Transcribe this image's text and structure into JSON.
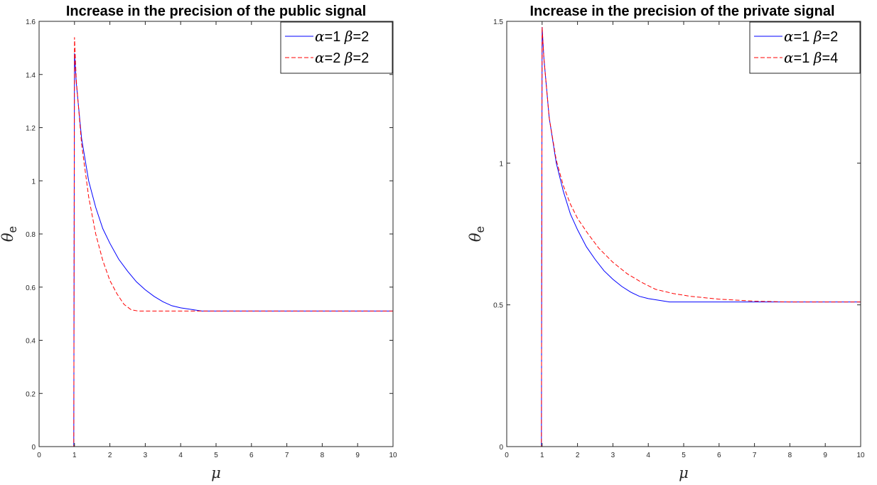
{
  "chart_data": [
    {
      "type": "line",
      "title": "Increase in the precision of the public signal",
      "xlabel": "μ",
      "ylabel_symbol": "θ",
      "ylabel_subscript": "e",
      "xlim": [
        0,
        10
      ],
      "ylim": [
        0,
        1.6
      ],
      "xticks": [
        "0",
        "1",
        "2",
        "3",
        "4",
        "5",
        "6",
        "7",
        "8",
        "9",
        "10"
      ],
      "yticks": [
        "0",
        "0.2",
        "0.4",
        "0.6",
        "0.8",
        "1",
        "1.2",
        "1.4",
        "1.6"
      ],
      "legend_position": "top-right",
      "grid": false,
      "series": [
        {
          "name": "α=1 β=2",
          "legend_parts": {
            "a_sym": "α",
            "a_val": "=1",
            "b_sym": "β",
            "b_val": "=2"
          },
          "color": "#0000ff",
          "dash": "solid",
          "points": [
            [
              0,
              0
            ],
            [
              0.98,
              0
            ],
            [
              1.0,
              1.48
            ],
            [
              1.05,
              1.37
            ],
            [
              1.2,
              1.16
            ],
            [
              1.4,
              1.0
            ],
            [
              1.6,
              0.9
            ],
            [
              1.8,
              0.82
            ],
            [
              2.0,
              0.765
            ],
            [
              2.25,
              0.705
            ],
            [
              2.5,
              0.66
            ],
            [
              2.75,
              0.62
            ],
            [
              3.0,
              0.59
            ],
            [
              3.25,
              0.565
            ],
            [
              3.5,
              0.545
            ],
            [
              3.75,
              0.53
            ],
            [
              4.0,
              0.522
            ],
            [
              4.3,
              0.516
            ],
            [
              4.6,
              0.51
            ],
            [
              10,
              0.51
            ]
          ]
        },
        {
          "name": "α=2 β=2",
          "legend_parts": {
            "a_sym": "α",
            "a_val": "=2",
            "b_sym": "β",
            "b_val": "=2"
          },
          "color": "#ff0000",
          "dash": "dashed",
          "points": [
            [
              0,
              0
            ],
            [
              0.98,
              0
            ],
            [
              1.0,
              1.54
            ],
            [
              1.05,
              1.38
            ],
            [
              1.2,
              1.14
            ],
            [
              1.4,
              0.94
            ],
            [
              1.6,
              0.8
            ],
            [
              1.8,
              0.7
            ],
            [
              2.0,
              0.625
            ],
            [
              2.2,
              0.575
            ],
            [
              2.4,
              0.535
            ],
            [
              2.6,
              0.515
            ],
            [
              2.8,
              0.51
            ],
            [
              10,
              0.51
            ]
          ]
        }
      ]
    },
    {
      "type": "line",
      "title": "Increase in the precision of the private signal",
      "xlabel": "μ",
      "ylabel_symbol": "θ",
      "ylabel_subscript": "e",
      "xlim": [
        0,
        10
      ],
      "ylim": [
        0,
        1.5
      ],
      "xticks": [
        "0",
        "1",
        "2",
        "3",
        "4",
        "5",
        "6",
        "7",
        "8",
        "9",
        "10"
      ],
      "yticks": [
        "0",
        "0.5",
        "1",
        "1.5"
      ],
      "legend_position": "top-right",
      "grid": false,
      "series": [
        {
          "name": "α=1 β=2",
          "legend_parts": {
            "a_sym": "α",
            "a_val": "=1",
            "b_sym": "β",
            "b_val": "=2"
          },
          "color": "#0000ff",
          "dash": "solid",
          "points": [
            [
              0,
              0
            ],
            [
              0.98,
              0
            ],
            [
              1.0,
              1.48
            ],
            [
              1.05,
              1.37
            ],
            [
              1.2,
              1.16
            ],
            [
              1.4,
              1.0
            ],
            [
              1.6,
              0.9
            ],
            [
              1.8,
              0.82
            ],
            [
              2.0,
              0.765
            ],
            [
              2.25,
              0.705
            ],
            [
              2.5,
              0.66
            ],
            [
              2.75,
              0.62
            ],
            [
              3.0,
              0.59
            ],
            [
              3.25,
              0.565
            ],
            [
              3.5,
              0.545
            ],
            [
              3.75,
              0.53
            ],
            [
              4.0,
              0.522
            ],
            [
              4.3,
              0.516
            ],
            [
              4.6,
              0.51
            ],
            [
              10,
              0.51
            ]
          ]
        },
        {
          "name": "α=1 β=4",
          "legend_parts": {
            "a_sym": "α",
            "a_val": "=1",
            "b_sym": "β",
            "b_val": "=4"
          },
          "color": "#ff0000",
          "dash": "dashed",
          "points": [
            [
              0,
              0
            ],
            [
              0.98,
              0
            ],
            [
              1.0,
              1.48
            ],
            [
              1.05,
              1.37
            ],
            [
              1.2,
              1.16
            ],
            [
              1.4,
              1.01
            ],
            [
              1.6,
              0.92
            ],
            [
              1.8,
              0.855
            ],
            [
              2.0,
              0.805
            ],
            [
              2.3,
              0.75
            ],
            [
              2.6,
              0.7
            ],
            [
              3.0,
              0.65
            ],
            [
              3.4,
              0.61
            ],
            [
              3.8,
              0.58
            ],
            [
              4.2,
              0.555
            ],
            [
              4.7,
              0.54
            ],
            [
              5.2,
              0.53
            ],
            [
              6.0,
              0.52
            ],
            [
              7.0,
              0.513
            ],
            [
              8.0,
              0.51
            ],
            [
              10,
              0.51
            ]
          ]
        }
      ]
    }
  ]
}
